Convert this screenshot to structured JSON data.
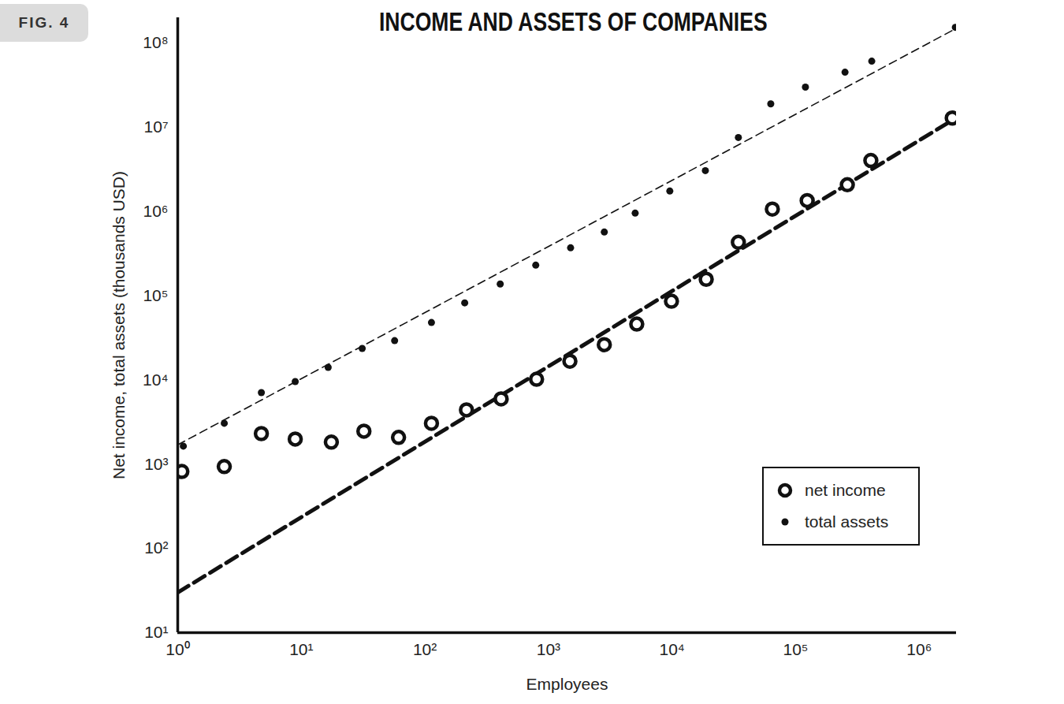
{
  "chart_data": {
    "type": "scatter",
    "title": "INCOME AND ASSETS OF COMPANIES",
    "annotations": [
      "FIG. 4"
    ],
    "x_label": "Employees",
    "y_label": "Net income, total assets (thousands USD)",
    "log": true,
    "grid": false,
    "legend": "bottom-right",
    "xlim": [
      1,
      2000000
    ],
    "ylim": [
      10,
      200000000
    ],
    "xticks": [
      {
        "value": 1,
        "label": "10⁰"
      },
      {
        "value": 10,
        "label": "10¹"
      },
      {
        "value": 100,
        "label": "10²"
      },
      {
        "value": 1000,
        "label": "10³"
      },
      {
        "value": 10000,
        "label": "10⁴"
      },
      {
        "value": 100000,
        "label": "10⁵"
      },
      {
        "value": 1000000,
        "label": "10⁶"
      }
    ],
    "yticks": [
      {
        "value": 10,
        "label": "10¹"
      },
      {
        "value": 100,
        "label": "10²"
      },
      {
        "value": 1000,
        "label": "10³"
      },
      {
        "value": 10000,
        "label": "10⁴"
      },
      {
        "value": 100000,
        "label": "10⁵"
      },
      {
        "value": 1000000,
        "label": "10⁶"
      },
      {
        "value": 10000000,
        "label": "10⁷"
      },
      {
        "value": 100000000,
        "label": "10⁸"
      }
    ],
    "series": [
      {
        "name": "net income",
        "type": "scatter",
        "marker": "open-circle",
        "color": "#111111",
        "x": [
          1.08,
          2.38,
          4.75,
          8.93,
          17.5,
          32.1,
          61.2,
          113,
          217,
          414,
          801,
          1490,
          2830,
          5180,
          9890,
          18900,
          34400,
          64800,
          124000,
          262000,
          406000,
          1850000
        ],
        "values": [
          820,
          938,
          2310,
          1990,
          1830,
          2470,
          2080,
          3060,
          4420,
          5970,
          10200,
          16700,
          26300,
          46100,
          86100,
          157000,
          432000,
          1070000,
          1350000,
          2080000,
          4040000,
          12900000
        ]
      },
      {
        "name": "total assets",
        "type": "scatter",
        "marker": "dot",
        "color": "#111111",
        "x": [
          1.11,
          2.38,
          4.75,
          8.93,
          16.5,
          31.1,
          56.9,
          113,
          210,
          407,
          789,
          1510,
          2830,
          5030,
          9590,
          18600,
          34400,
          62900,
          120000,
          251000,
          413000,
          1960000
        ],
        "values": [
          1640,
          3060,
          7080,
          9580,
          14100,
          23700,
          29300,
          48100,
          82400,
          138000,
          231000,
          371000,
          571000,
          957000,
          1750000,
          3060000,
          7570000,
          19000000,
          30000000,
          45100000,
          61000000,
          154000000
        ]
      },
      {
        "type": "line",
        "line_style": "thick-dashed",
        "color": "#111111",
        "x": [
          1,
          2000000
        ],
        "values": [
          30,
          13000000
        ]
      },
      {
        "type": "line",
        "line_style": "dashed",
        "color": "#111111",
        "x": [
          1,
          2000000
        ],
        "values": [
          1700,
          150000000
        ]
      }
    ]
  }
}
